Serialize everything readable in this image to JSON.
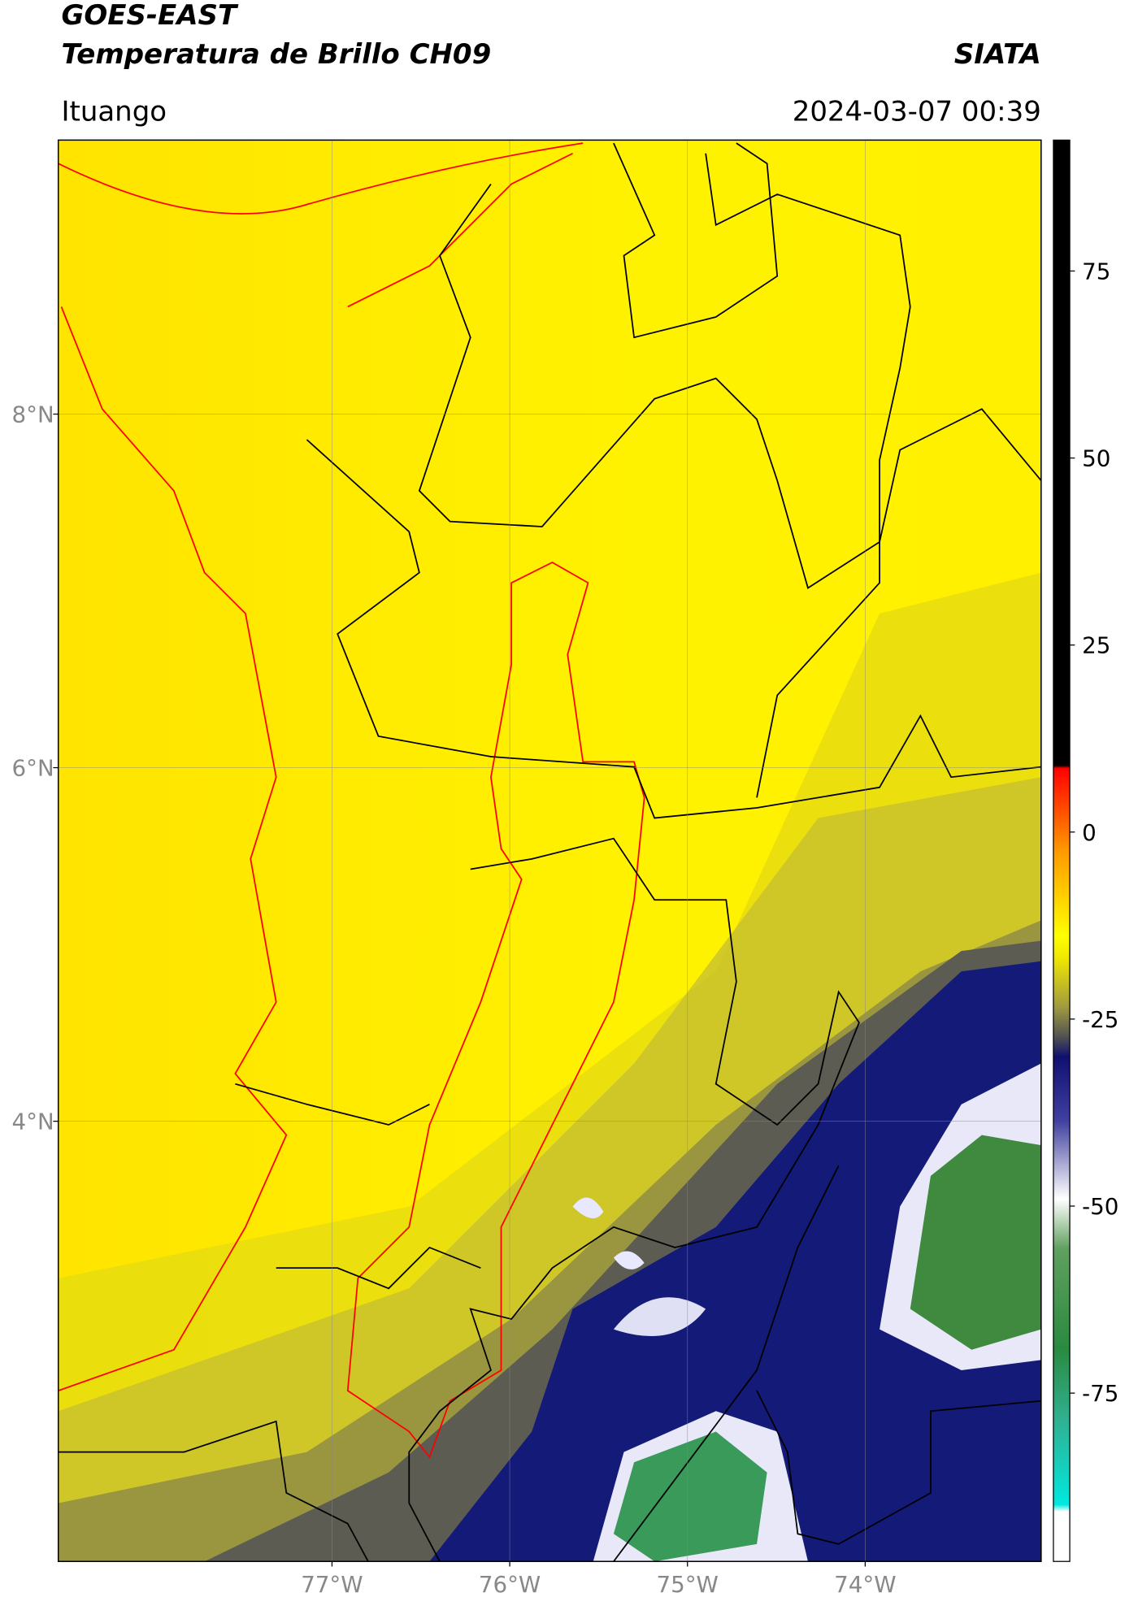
{
  "header": {
    "title": "GOES-EAST",
    "subtitle": "Temperatura de Brillo CH09",
    "organization": "SIATA",
    "location": "Ituango",
    "timestamp": "2024-03-07 00:39"
  },
  "map": {
    "xlim": [
      -78.54,
      -73.01
    ],
    "ylim": [
      1.51,
      9.55
    ],
    "xticks": [
      {
        "value": -77,
        "label": "77°W"
      },
      {
        "value": -76,
        "label": "76°W"
      },
      {
        "value": -75,
        "label": "75°W"
      },
      {
        "value": -74,
        "label": "74°W"
      }
    ],
    "yticks": [
      {
        "value": 8,
        "label": "8°N"
      },
      {
        "value": 6,
        "label": "6°N"
      },
      {
        "value": 4,
        "label": "4°N"
      }
    ],
    "grid": true
  },
  "colorbar": {
    "lim": [
      -97.5,
      92.5
    ],
    "ticks": [
      75,
      50,
      25,
      0,
      -25,
      -50,
      -75
    ]
  }
}
